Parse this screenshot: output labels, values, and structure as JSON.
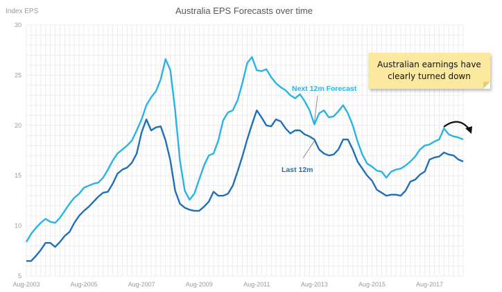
{
  "chart_data": {
    "type": "line",
    "title": "Australia EPS Forecasts over time",
    "ylabel": "Index EPS",
    "xlabel": "",
    "ylim": [
      5,
      30
    ],
    "yticks": [
      5,
      10,
      15,
      20,
      25,
      30
    ],
    "xlim": [
      "2003-08",
      "2018-10"
    ],
    "xticks": [
      "Aug-2003",
      "Aug-2005",
      "Aug-2007",
      "Aug-2009",
      "Aug-2011",
      "Aug-2013",
      "Aug-2015",
      "Aug-2017"
    ],
    "grid": true,
    "legend": "inline labels",
    "series": [
      {
        "name": "Next 12m Forecast",
        "color": "#27b3e6",
        "points": [
          [
            "2003-08",
            8.4
          ],
          [
            "2003-10",
            9.2
          ],
          [
            "2003-12",
            9.8
          ],
          [
            "2004-02",
            10.3
          ],
          [
            "2004-04",
            10.7
          ],
          [
            "2004-06",
            10.4
          ],
          [
            "2004-08",
            10.3
          ],
          [
            "2004-10",
            10.8
          ],
          [
            "2004-12",
            11.5
          ],
          [
            "2005-02",
            12.2
          ],
          [
            "2005-04",
            12.8
          ],
          [
            "2005-06",
            13.2
          ],
          [
            "2005-08",
            13.8
          ],
          [
            "2005-10",
            14.0
          ],
          [
            "2005-12",
            14.2
          ],
          [
            "2006-02",
            14.3
          ],
          [
            "2006-04",
            14.8
          ],
          [
            "2006-06",
            15.6
          ],
          [
            "2006-08",
            16.5
          ],
          [
            "2006-10",
            17.2
          ],
          [
            "2006-12",
            17.6
          ],
          [
            "2007-02",
            18.0
          ],
          [
            "2007-04",
            18.5
          ],
          [
            "2007-06",
            19.5
          ],
          [
            "2007-08",
            20.6
          ],
          [
            "2007-10",
            22.0
          ],
          [
            "2007-12",
            22.8
          ],
          [
            "2008-02",
            23.4
          ],
          [
            "2008-04",
            24.6
          ],
          [
            "2008-06",
            26.6
          ],
          [
            "2008-08",
            25.5
          ],
          [
            "2008-10",
            21.5
          ],
          [
            "2008-12",
            16.5
          ],
          [
            "2009-02",
            13.5
          ],
          [
            "2009-04",
            12.6
          ],
          [
            "2009-06",
            13.2
          ],
          [
            "2009-08",
            14.6
          ],
          [
            "2009-10",
            16.0
          ],
          [
            "2009-12",
            17.0
          ],
          [
            "2010-02",
            17.2
          ],
          [
            "2010-04",
            18.5
          ],
          [
            "2010-06",
            20.5
          ],
          [
            "2010-08",
            21.3
          ],
          [
            "2010-10",
            21.5
          ],
          [
            "2010-12",
            22.5
          ],
          [
            "2011-02",
            24.2
          ],
          [
            "2011-04",
            26.2
          ],
          [
            "2011-06",
            26.8
          ],
          [
            "2011-08",
            25.5
          ],
          [
            "2011-10",
            25.4
          ],
          [
            "2011-12",
            25.6
          ],
          [
            "2012-02",
            24.8
          ],
          [
            "2012-04",
            24.2
          ],
          [
            "2012-06",
            23.8
          ],
          [
            "2012-08",
            23.5
          ],
          [
            "2012-10",
            23.0
          ],
          [
            "2012-12",
            22.7
          ],
          [
            "2013-02",
            23.1
          ],
          [
            "2013-04",
            22.4
          ],
          [
            "2013-06",
            21.5
          ],
          [
            "2013-08",
            20.1
          ],
          [
            "2013-10",
            21.2
          ],
          [
            "2013-12",
            21.5
          ],
          [
            "2014-02",
            20.8
          ],
          [
            "2014-04",
            20.9
          ],
          [
            "2014-06",
            21.4
          ],
          [
            "2014-08",
            22.0
          ],
          [
            "2014-10",
            21.2
          ],
          [
            "2014-12",
            20.0
          ],
          [
            "2015-02",
            18.4
          ],
          [
            "2015-04",
            17.1
          ],
          [
            "2015-06",
            16.2
          ],
          [
            "2015-08",
            15.9
          ],
          [
            "2015-10",
            15.5
          ],
          [
            "2015-12",
            15.4
          ],
          [
            "2016-02",
            14.8
          ],
          [
            "2016-04",
            15.4
          ],
          [
            "2016-06",
            15.6
          ],
          [
            "2016-08",
            15.7
          ],
          [
            "2016-10",
            16.0
          ],
          [
            "2016-12",
            16.4
          ],
          [
            "2017-02",
            16.9
          ],
          [
            "2017-04",
            17.6
          ],
          [
            "2017-06",
            18.0
          ],
          [
            "2017-08",
            18.1
          ],
          [
            "2017-10",
            18.4
          ],
          [
            "2017-12",
            18.6
          ],
          [
            "2018-02",
            19.7
          ],
          [
            "2018-04",
            19.1
          ],
          [
            "2018-06",
            18.9
          ],
          [
            "2018-08",
            18.8
          ],
          [
            "2018-10",
            18.6
          ]
        ]
      },
      {
        "name": "Last 12m",
        "color": "#1f6fb8",
        "points": [
          [
            "2003-08",
            6.5
          ],
          [
            "2003-10",
            6.5
          ],
          [
            "2003-12",
            7.0
          ],
          [
            "2004-02",
            7.6
          ],
          [
            "2004-04",
            8.3
          ],
          [
            "2004-06",
            8.3
          ],
          [
            "2004-08",
            7.9
          ],
          [
            "2004-10",
            8.4
          ],
          [
            "2004-12",
            9.0
          ],
          [
            "2005-02",
            9.4
          ],
          [
            "2005-04",
            10.3
          ],
          [
            "2005-06",
            11.0
          ],
          [
            "2005-08",
            11.5
          ],
          [
            "2005-10",
            11.9
          ],
          [
            "2005-12",
            12.4
          ],
          [
            "2006-02",
            12.9
          ],
          [
            "2006-04",
            13.3
          ],
          [
            "2006-06",
            13.4
          ],
          [
            "2006-08",
            14.2
          ],
          [
            "2006-10",
            15.2
          ],
          [
            "2006-12",
            15.6
          ],
          [
            "2007-02",
            15.8
          ],
          [
            "2007-04",
            16.3
          ],
          [
            "2007-06",
            17.2
          ],
          [
            "2007-08",
            19.3
          ],
          [
            "2007-10",
            20.6
          ],
          [
            "2007-12",
            19.5
          ],
          [
            "2008-02",
            19.8
          ],
          [
            "2008-04",
            19.9
          ],
          [
            "2008-06",
            18.5
          ],
          [
            "2008-08",
            16.5
          ],
          [
            "2008-10",
            13.5
          ],
          [
            "2008-12",
            12.2
          ],
          [
            "2009-02",
            11.8
          ],
          [
            "2009-04",
            11.6
          ],
          [
            "2009-06",
            11.5
          ],
          [
            "2009-08",
            11.5
          ],
          [
            "2009-10",
            11.9
          ],
          [
            "2009-12",
            12.4
          ],
          [
            "2010-02",
            13.4
          ],
          [
            "2010-04",
            13.0
          ],
          [
            "2010-06",
            13.0
          ],
          [
            "2010-08",
            13.2
          ],
          [
            "2010-10",
            14.0
          ],
          [
            "2010-12",
            15.4
          ],
          [
            "2011-02",
            16.9
          ],
          [
            "2011-04",
            18.6
          ],
          [
            "2011-06",
            20.1
          ],
          [
            "2011-08",
            21.5
          ],
          [
            "2011-10",
            20.8
          ],
          [
            "2011-12",
            20.0
          ],
          [
            "2012-02",
            19.9
          ],
          [
            "2012-04",
            20.6
          ],
          [
            "2012-06",
            20.4
          ],
          [
            "2012-08",
            19.7
          ],
          [
            "2012-10",
            19.2
          ],
          [
            "2012-12",
            19.5
          ],
          [
            "2013-02",
            19.5
          ],
          [
            "2013-04",
            19.1
          ],
          [
            "2013-06",
            18.9
          ],
          [
            "2013-08",
            18.6
          ],
          [
            "2013-10",
            17.6
          ],
          [
            "2013-12",
            17.2
          ],
          [
            "2014-02",
            17.0
          ],
          [
            "2014-04",
            17.1
          ],
          [
            "2014-06",
            17.6
          ],
          [
            "2014-08",
            18.6
          ],
          [
            "2014-10",
            18.6
          ],
          [
            "2014-12",
            17.6
          ],
          [
            "2015-02",
            16.4
          ],
          [
            "2015-04",
            15.7
          ],
          [
            "2015-06",
            15.0
          ],
          [
            "2015-08",
            14.5
          ],
          [
            "2015-10",
            13.6
          ],
          [
            "2015-12",
            13.3
          ],
          [
            "2016-02",
            13.0
          ],
          [
            "2016-04",
            13.1
          ],
          [
            "2016-06",
            13.1
          ],
          [
            "2016-08",
            13.0
          ],
          [
            "2016-10",
            13.5
          ],
          [
            "2016-12",
            14.4
          ],
          [
            "2017-02",
            14.6
          ],
          [
            "2017-04",
            15.1
          ],
          [
            "2017-06",
            15.4
          ],
          [
            "2017-08",
            16.6
          ],
          [
            "2017-10",
            16.8
          ],
          [
            "2017-12",
            16.9
          ],
          [
            "2018-02",
            17.3
          ],
          [
            "2018-04",
            17.1
          ],
          [
            "2018-06",
            17.0
          ],
          [
            "2018-08",
            16.6
          ],
          [
            "2018-10",
            16.4
          ]
        ]
      }
    ],
    "annotations": {
      "note_text": "Australian earnings have clearly turned down",
      "note_background": "#fbe9a0"
    }
  }
}
